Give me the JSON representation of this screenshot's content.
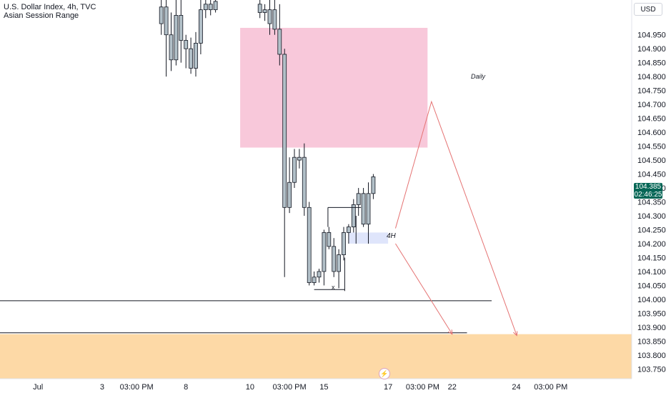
{
  "header": {
    "title": "U.S. Dollar Index, 4h, TVC",
    "indicator": "Asian Session Range"
  },
  "currency_badge": "USD",
  "current_price": {
    "value": "104.385",
    "countdown": "02:46:25",
    "color": "#056656"
  },
  "zone_labels": {
    "daily": "Daily",
    "h4": "4H",
    "x": "x"
  },
  "icons": {
    "bolt": "lightning-icon"
  },
  "colors": {
    "candle_fill": "#b2c0c8",
    "candle_stroke": "#131722",
    "daily_zone": "#f8c8da",
    "h4_zone": "#dfe5fb",
    "target_zone": "#fdd9a6",
    "arrow": "#e57373",
    "line": "#131722"
  },
  "chart_data": {
    "type": "candlestick",
    "title": "U.S. Dollar Index, 4h, TVC",
    "ylim": [
      103.715,
      105.075
    ],
    "yticks": [
      "104.950",
      "104.900",
      "104.850",
      "104.800",
      "104.750",
      "104.700",
      "104.650",
      "104.600",
      "104.550",
      "104.500",
      "104.450",
      "104.400",
      "104.350",
      "104.300",
      "104.250",
      "104.200",
      "104.150",
      "104.100",
      "104.050",
      "104.000",
      "103.950",
      "103.900",
      "103.850",
      "103.800",
      "103.750"
    ],
    "xticks": [
      {
        "label": "Jul",
        "bar": -42
      },
      {
        "label": "3",
        "bar": -29
      },
      {
        "label": "03:00 PM",
        "bar": -22
      },
      {
        "label": "8",
        "bar": -12
      },
      {
        "label": "10",
        "bar": 1
      },
      {
        "label": "03:00 PM",
        "bar": 9
      },
      {
        "label": "15",
        "bar": 16
      },
      {
        "label": "17",
        "bar": 29
      },
      {
        "label": "03:00 PM",
        "bar": 36
      },
      {
        "label": "22",
        "bar": 42
      },
      {
        "label": "24",
        "bar": 55
      },
      {
        "label": "03:00 PM",
        "bar": 62
      }
    ],
    "candles": [
      {
        "bar": -17,
        "o": 104.99,
        "h": 105.075,
        "l": 104.95,
        "c": 105.05
      },
      {
        "bar": -16,
        "o": 105.05,
        "h": 105.075,
        "l": 104.8,
        "c": 104.95
      },
      {
        "bar": -15,
        "o": 104.95,
        "h": 105.03,
        "l": 104.82,
        "c": 104.86
      },
      {
        "bar": -14,
        "o": 104.86,
        "h": 105.075,
        "l": 104.84,
        "c": 105.02
      },
      {
        "bar": -13,
        "o": 105.02,
        "h": 105.075,
        "l": 104.85,
        "c": 104.93
      },
      {
        "bar": -12,
        "o": 104.93,
        "h": 104.95,
        "l": 104.83,
        "c": 104.9
      },
      {
        "bar": -11,
        "o": 104.9,
        "h": 104.94,
        "l": 104.81,
        "c": 104.83
      },
      {
        "bar": -10,
        "o": 104.83,
        "h": 104.96,
        "l": 104.8,
        "c": 104.92
      },
      {
        "bar": -9,
        "o": 104.92,
        "h": 105.075,
        "l": 104.88,
        "c": 105.04
      },
      {
        "bar": -8,
        "o": 105.04,
        "h": 105.075,
        "l": 105.01,
        "c": 105.06
      },
      {
        "bar": -7,
        "o": 105.06,
        "h": 105.075,
        "l": 105.02,
        "c": 105.04
      },
      {
        "bar": -6,
        "o": 105.04,
        "h": 105.075,
        "l": 105.03,
        "c": 105.07
      },
      {
        "bar": 3,
        "o": 105.06,
        "h": 105.075,
        "l": 105.01,
        "c": 105.03
      },
      {
        "bar": 4,
        "o": 105.03,
        "h": 105.06,
        "l": 105.0,
        "c": 105.04
      },
      {
        "bar": 5,
        "o": 105.04,
        "h": 105.075,
        "l": 104.95,
        "c": 104.99
      },
      {
        "bar": 6,
        "o": 105.04,
        "h": 105.075,
        "l": 104.95,
        "c": 104.97
      },
      {
        "bar": 7,
        "o": 104.97,
        "h": 105.06,
        "l": 104.84,
        "c": 104.88
      },
      {
        "bar": 8,
        "o": 104.88,
        "h": 104.9,
        "l": 104.08,
        "c": 104.33
      },
      {
        "bar": 9,
        "o": 104.33,
        "h": 104.51,
        "l": 104.31,
        "c": 104.42
      },
      {
        "bar": 10,
        "o": 104.42,
        "h": 104.54,
        "l": 104.4,
        "c": 104.51
      },
      {
        "bar": 11,
        "o": 104.51,
        "h": 104.54,
        "l": 104.47,
        "c": 104.5
      },
      {
        "bar": 12,
        "o": 104.51,
        "h": 104.56,
        "l": 104.3,
        "c": 104.33
      },
      {
        "bar": 13,
        "o": 104.33,
        "h": 104.35,
        "l": 104.05,
        "c": 104.06
      },
      {
        "bar": 14,
        "o": 104.06,
        "h": 104.1,
        "l": 104.05,
        "c": 104.08
      },
      {
        "bar": 15,
        "o": 104.08,
        "h": 104.11,
        "l": 104.06,
        "c": 104.1
      },
      {
        "bar": 16,
        "o": 104.1,
        "h": 104.25,
        "l": 104.05,
        "c": 104.24
      },
      {
        "bar": 17,
        "o": 104.24,
        "h": 104.26,
        "l": 104.18,
        "c": 104.19
      },
      {
        "bar": 18,
        "o": 104.19,
        "h": 104.22,
        "l": 104.08,
        "c": 104.1
      },
      {
        "bar": 19,
        "o": 104.1,
        "h": 104.18,
        "l": 104.04,
        "c": 104.16
      },
      {
        "bar": 20,
        "o": 104.16,
        "h": 104.26,
        "l": 104.14,
        "c": 104.24
      },
      {
        "bar": 21,
        "o": 104.24,
        "h": 104.27,
        "l": 104.2,
        "c": 104.26
      },
      {
        "bar": 22,
        "o": 104.26,
        "h": 104.36,
        "l": 104.24,
        "c": 104.34
      },
      {
        "bar": 23,
        "o": 104.34,
        "h": 104.4,
        "l": 104.3,
        "c": 104.38
      },
      {
        "bar": 24,
        "o": 104.38,
        "h": 104.4,
        "l": 104.26,
        "c": 104.27
      },
      {
        "bar": 25,
        "o": 104.27,
        "h": 104.42,
        "l": 104.2,
        "c": 104.38
      },
      {
        "bar": 26,
        "o": 104.38,
        "h": 104.45,
        "l": 104.36,
        "c": 104.44
      }
    ],
    "zones": [
      {
        "name": "Daily",
        "bar_from": -1,
        "bar_to": 37,
        "y_top": 104.975,
        "y_bottom": 104.545
      },
      {
        "name": "4H",
        "bar_from": 21,
        "bar_to": 29,
        "y_top": 104.24,
        "y_bottom": 104.2
      },
      {
        "name": "target",
        "bar_from": -70,
        "bar_to": 80,
        "y_top": 103.875,
        "y_bottom": 103.715
      }
    ],
    "hlines": [
      {
        "y": 103.995,
        "bar_from": -70,
        "bar_to": 50
      },
      {
        "y": 103.88,
        "bar_from": -70,
        "bar_to": 45
      }
    ]
  }
}
